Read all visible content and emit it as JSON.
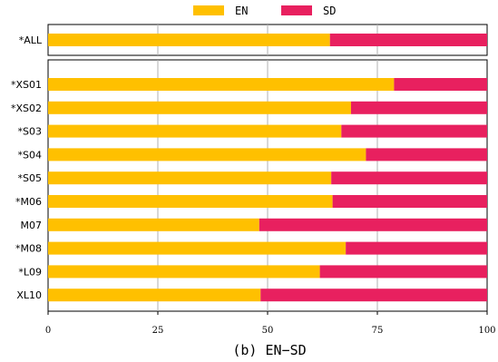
{
  "chart_data": {
    "type": "bar",
    "orientation": "horizontal",
    "stacked": true,
    "caption": "(b) EN−SD",
    "legend": {
      "placement": "top-center"
    },
    "xlim": [
      0,
      100
    ],
    "xticks": [
      "0",
      "25",
      "50",
      "75",
      "100"
    ],
    "grid": true,
    "colors": {
      "EN": "#FFC000",
      "SD": "#E8205F"
    },
    "panels": [
      {
        "categories": [
          "*ALL"
        ],
        "series": [
          {
            "name": "EN",
            "values": [
              64.2
            ]
          },
          {
            "name": "SD",
            "values": [
              35.8
            ]
          }
        ]
      },
      {
        "categories": [
          "*XS01",
          "*XS02",
          "*S03",
          "*S04",
          "*S05",
          "*M06",
          "M07",
          "*M08",
          "*L09",
          "XL10"
        ],
        "series": [
          {
            "name": "EN",
            "values": [
              78.8,
              69.0,
              66.8,
              72.4,
              64.5,
              64.8,
              48.1,
              67.8,
              61.9,
              48.4
            ]
          },
          {
            "name": "SD",
            "values": [
              21.2,
              31.0,
              33.2,
              27.6,
              35.5,
              35.2,
              51.9,
              32.2,
              38.1,
              51.6
            ]
          }
        ]
      }
    ]
  }
}
